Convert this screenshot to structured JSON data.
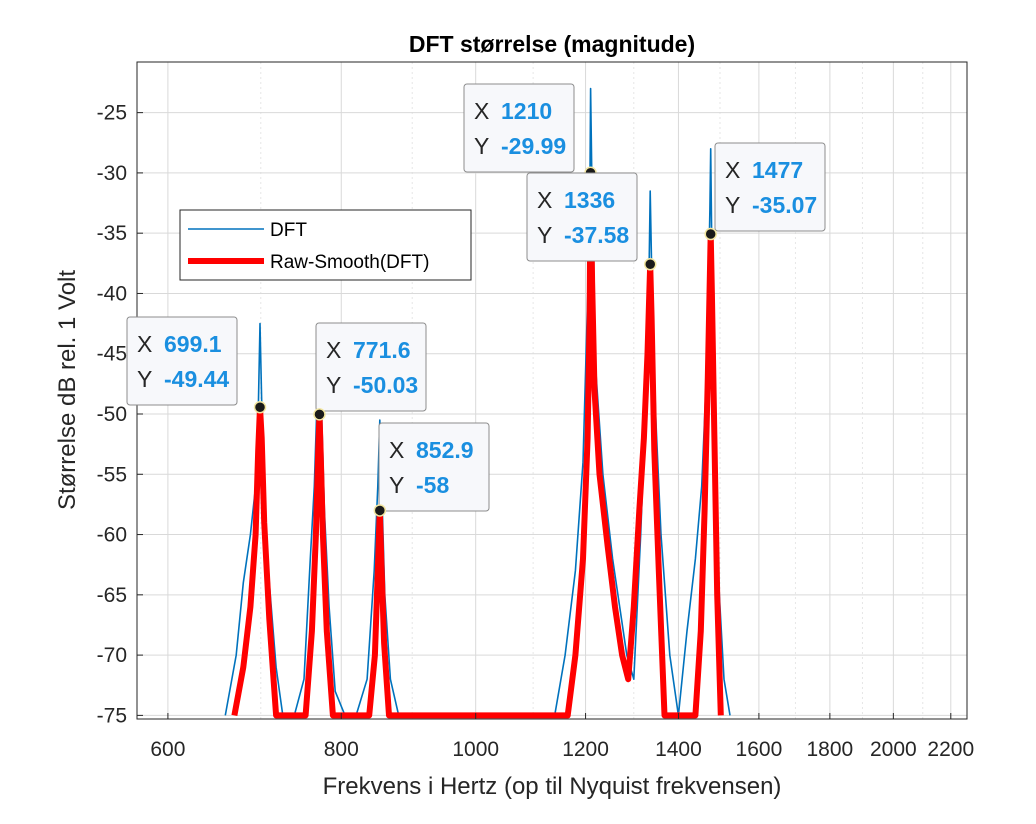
{
  "chart_data": {
    "type": "line",
    "title": "DFT størrelse (magnitude)",
    "xlabel": "Frekvens i Hertz (op til Nyquist frekvensen)",
    "ylabel": "Størrelse dB rel. 1 Volt",
    "x_scale": "log",
    "xlim": [
      570,
      2260
    ],
    "ylim": [
      -75.3,
      -20.8
    ],
    "x_ticks": [
      600,
      800,
      1000,
      1200,
      1400,
      1600,
      1800,
      2000,
      2200
    ],
    "y_ticks": [
      -25,
      -30,
      -35,
      -40,
      -45,
      -50,
      -55,
      -60,
      -65,
      -70,
      -75
    ],
    "grid": true,
    "legend": {
      "position": "upper-left",
      "entries": [
        "DFT",
        "Raw-Smooth(DFT)"
      ]
    },
    "colors": {
      "dft": "#0072bd",
      "smooth": "#ff0000",
      "datatip_value": "#1a8fe0",
      "marker": "#1a1a1a"
    },
    "series": [
      {
        "name": "DFT",
        "x": [
          660,
          672,
          680,
          688,
          694,
          697,
          699.1,
          701,
          704,
          710,
          718,
          726,
          740,
          752,
          760,
          765,
          769,
          771.6,
          774,
          778,
          784,
          792,
          805,
          820,
          835,
          845,
          850,
          852.9,
          856,
          860,
          868,
          880,
          890,
          1140,
          1160,
          1180,
          1195,
          1203,
          1208,
          1210,
          1213,
          1220,
          1235,
          1255,
          1270,
          1285,
          1300,
          1315,
          1325,
          1332,
          1336,
          1340,
          1348,
          1360,
          1380,
          1400,
          1420,
          1440,
          1455,
          1465,
          1471,
          1475,
          1477,
          1480,
          1486,
          1495,
          1510,
          1525
        ],
        "y": [
          -75,
          -70,
          -64,
          -60,
          -56,
          -50,
          -42.5,
          -49,
          -57,
          -64,
          -71,
          -75,
          -75,
          -72,
          -62,
          -56,
          -48,
          -43.5,
          -49,
          -58,
          -66,
          -73,
          -75,
          -75,
          -72,
          -63,
          -56,
          -50.5,
          -57,
          -65,
          -72,
          -75,
          -75,
          -75,
          -70,
          -63,
          -54,
          -42,
          -35,
          -23,
          -32,
          -46,
          -55,
          -62,
          -66,
          -70,
          -72,
          -60,
          -50,
          -42,
          -31.5,
          -40,
          -50,
          -60,
          -70,
          -75,
          -68,
          -62,
          -56,
          -48,
          -40,
          -33,
          -28,
          -37,
          -50,
          -63,
          -72,
          -75
        ]
      },
      {
        "name": "Raw-Smooth(DFT)",
        "x": [
          670,
          680,
          688,
          694,
          697,
          699.1,
          701,
          704,
          710,
          718,
          754,
          762,
          767,
          770,
          771.6,
          773,
          776,
          781,
          789,
          838,
          846,
          850,
          852.9,
          855,
          859,
          866,
          1165,
          1180,
          1195,
          1204,
          1208,
          1210,
          1213,
          1218,
          1228,
          1245,
          1260,
          1275,
          1288,
          1300,
          1312,
          1322,
          1330,
          1334,
          1336,
          1339,
          1345,
          1355,
          1368,
          1440,
          1453,
          1462,
          1470,
          1474,
          1477,
          1480,
          1486,
          1493,
          1502
        ],
        "y": [
          -75,
          -71,
          -66,
          -60,
          -53,
          -49.44,
          -52,
          -59,
          -67,
          -75,
          -75,
          -68,
          -60,
          -53,
          -50.03,
          -53,
          -60,
          -68,
          -75,
          -75,
          -70,
          -63,
          -58,
          -62,
          -69,
          -75,
          -75,
          -70,
          -62,
          -52,
          -42,
          -29.99,
          -39,
          -48,
          -55,
          -61,
          -66,
          -70,
          -72,
          -66,
          -58,
          -52,
          -45,
          -40,
          -37.58,
          -42,
          -53,
          -63,
          -75,
          -75,
          -68,
          -58,
          -47,
          -40,
          -35.07,
          -40,
          -52,
          -65,
          -75
        ]
      }
    ],
    "datatips": [
      {
        "x_label": "X",
        "y_label": "Y",
        "x": "699.1",
        "y": "-49.44",
        "xv": 699.1,
        "yv": -49.44
      },
      {
        "x_label": "X",
        "y_label": "Y",
        "x": "771.6",
        "y": "-50.03",
        "xv": 771.6,
        "yv": -50.03
      },
      {
        "x_label": "X",
        "y_label": "Y",
        "x": "852.9",
        "y": "-58",
        "xv": 852.9,
        "yv": -58
      },
      {
        "x_label": "X",
        "y_label": "Y",
        "x": "1210",
        "y": "-29.99",
        "xv": 1210,
        "yv": -29.99
      },
      {
        "x_label": "X",
        "y_label": "Y",
        "x": "1336",
        "y": "-37.58",
        "xv": 1336,
        "yv": -37.58
      },
      {
        "x_label": "X",
        "y_label": "Y",
        "x": "1477",
        "y": "-35.07",
        "xv": 1477,
        "yv": -35.07
      }
    ]
  }
}
